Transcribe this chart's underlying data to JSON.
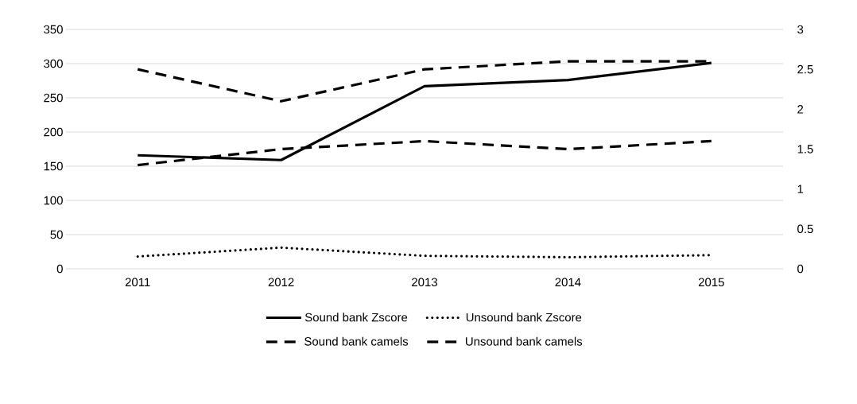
{
  "chart_data": {
    "type": "line",
    "categories": [
      "2011",
      "2012",
      "2013",
      "2014",
      "2015"
    ],
    "series": [
      {
        "name": "Sound bank Zscore",
        "color": "#000000",
        "values": [
          166,
          159,
          267,
          276,
          301
        ],
        "line_style": "solid"
      },
      {
        "name": "Unsound bank Zscore",
        "color": "#000000",
        "values": [
          18,
          31,
          19,
          17,
          20
        ],
        "line_style": "dotted"
      },
      {
        "name": "Sound bank camels",
        "color": "#000000",
        "values": [
          1.3,
          1.5,
          1.6,
          1.5,
          1.6
        ],
        "line_style": "dashed",
        "axis": "y2"
      },
      {
        "name": "Unsound bank camels",
        "color": "#000000",
        "values": [
          2.5,
          2.1,
          2.5,
          2.6,
          2.6
        ],
        "line_style": "dashed",
        "axis": "y2"
      }
    ],
    "ylim": [
      0,
      350
    ],
    "yticks": [
      0,
      50,
      100,
      150,
      200,
      250,
      300,
      350
    ],
    "y2lim": [
      0,
      3
    ],
    "y2ticks": [
      0,
      0.5,
      1,
      1.5,
      2,
      2.5,
      3
    ],
    "grid": "y",
    "legend": "bottom",
    "marker": "none"
  }
}
